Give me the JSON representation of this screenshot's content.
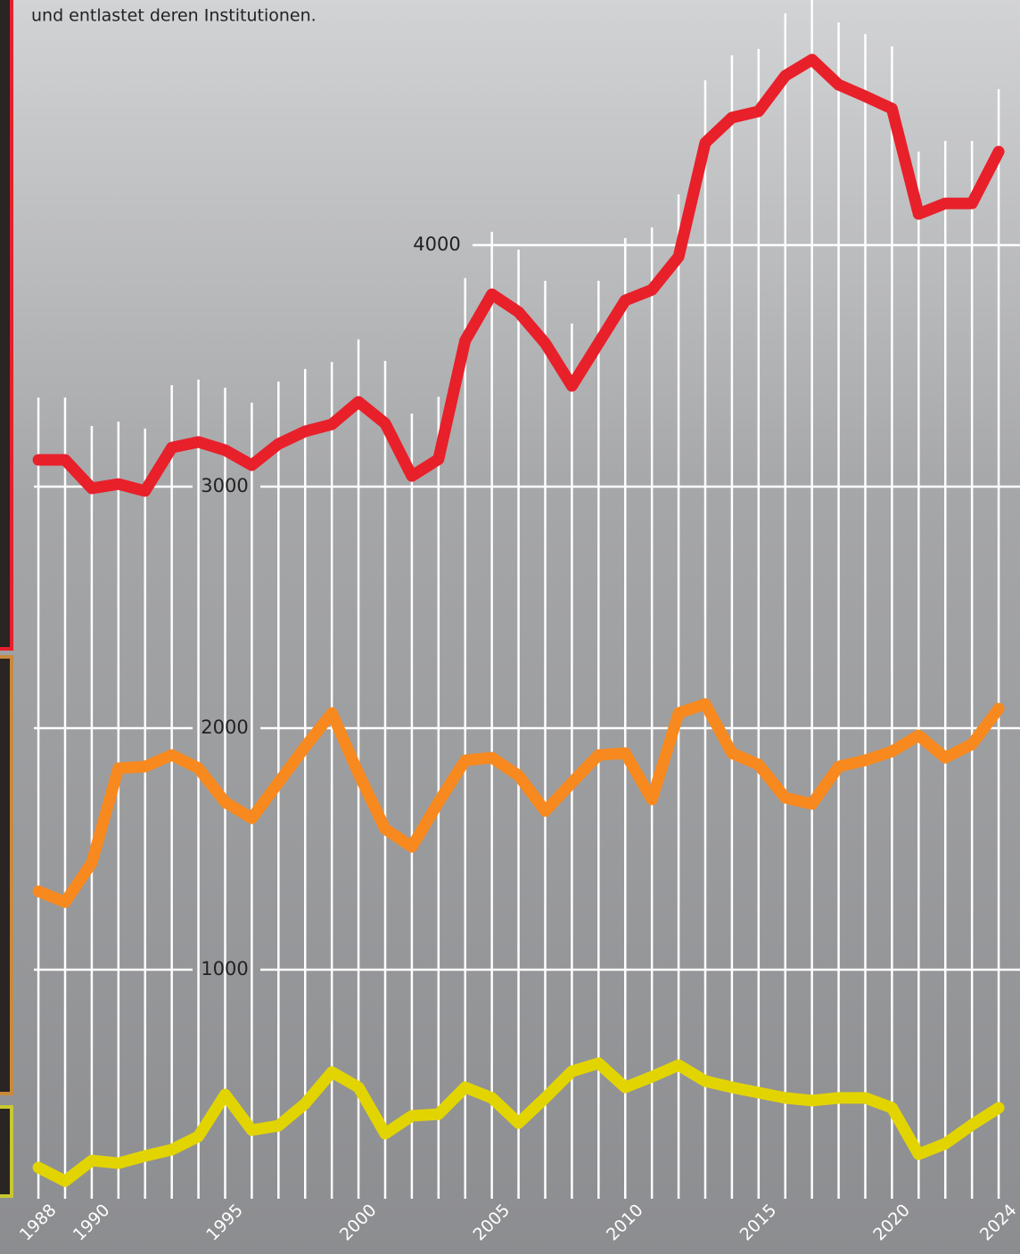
{
  "chart_data": {
    "type": "line",
    "subtitle": "und entlastet deren Institutionen.",
    "x": [
      1988,
      1989,
      1990,
      1991,
      1992,
      1993,
      1994,
      1995,
      1996,
      1997,
      1998,
      1999,
      2000,
      2001,
      2002,
      2003,
      2004,
      2005,
      2006,
      2007,
      2008,
      2009,
      2010,
      2011,
      2012,
      2013,
      2014,
      2015,
      2016,
      2017,
      2018,
      2019,
      2020,
      2021,
      2022,
      2023,
      2024
    ],
    "xlim": [
      1986.56,
      2024.8
    ],
    "xticks": [
      1988,
      1990,
      1995,
      2000,
      2005,
      2010,
      2015,
      2020,
      2024
    ],
    "ylim": [
      -177,
      5015
    ],
    "yticks": [
      1000,
      2000,
      3000,
      4000
    ],
    "grid": true,
    "series": [
      {
        "color": "#e8202a",
        "values": [
          3111,
          3111,
          2993,
          3011,
          2982,
          3162,
          3185,
          3151,
          3089,
          3177,
          3229,
          3258,
          3351,
          3262,
          3044,
          3114,
          3605,
          3797,
          3723,
          3594,
          3417,
          3594,
          3771,
          3815,
          3952,
          4424,
          4528,
          4554,
          4701,
          4768,
          4664,
          4616,
          4565,
          4129,
          4173,
          4173,
          4387
        ]
      },
      {
        "color": "#f7891f",
        "values": [
          1325,
          1280,
          1443,
          1834,
          1841,
          1889,
          1834,
          1694,
          1627,
          1775,
          1923,
          2063,
          1812,
          1583,
          1509,
          1694,
          1867,
          1878,
          1804,
          1657,
          1775,
          1889,
          1897,
          1705,
          2063,
          2100,
          1897,
          1849,
          1712,
          1686,
          1841,
          1867,
          1904,
          1970,
          1878,
          1934,
          2081
        ]
      },
      {
        "color": "#e2d400",
        "values": [
          181,
          125,
          210,
          199,
          229,
          255,
          310,
          483,
          336,
          354,
          446,
          576,
          513,
          321,
          395,
          402,
          513,
          469,
          365,
          469,
          579,
          613,
          513,
          557,
          605,
          539,
          513,
          491,
          469,
          458,
          469,
          469,
          428,
          236,
          280,
          358,
          428
        ]
      }
    ]
  }
}
